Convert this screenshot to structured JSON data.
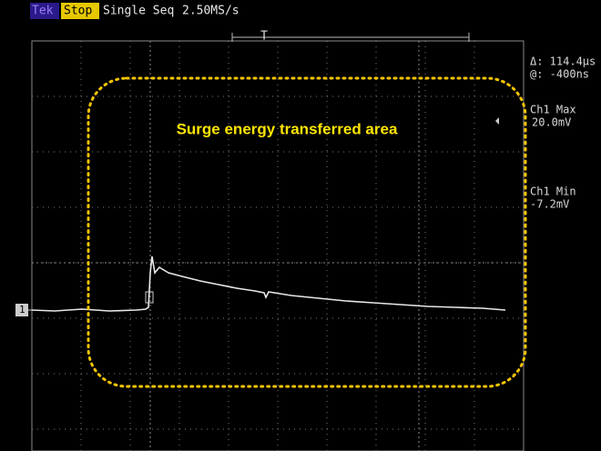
{
  "header": {
    "brand": "Tek",
    "state": "Stop",
    "mode": "Single Seq",
    "sample_rate": "2.50MS/s"
  },
  "trigger_marker": "T",
  "channel_marker": "1",
  "measurements": {
    "delta": "Δ: 114.4µs",
    "at": "@: -400ns",
    "max_label": "Ch1 Max",
    "max_value": "20.0mV",
    "min_label": "Ch1 Min",
    "min_value": "-7.2mV"
  },
  "annotation": "Surge energy transferred area"
}
